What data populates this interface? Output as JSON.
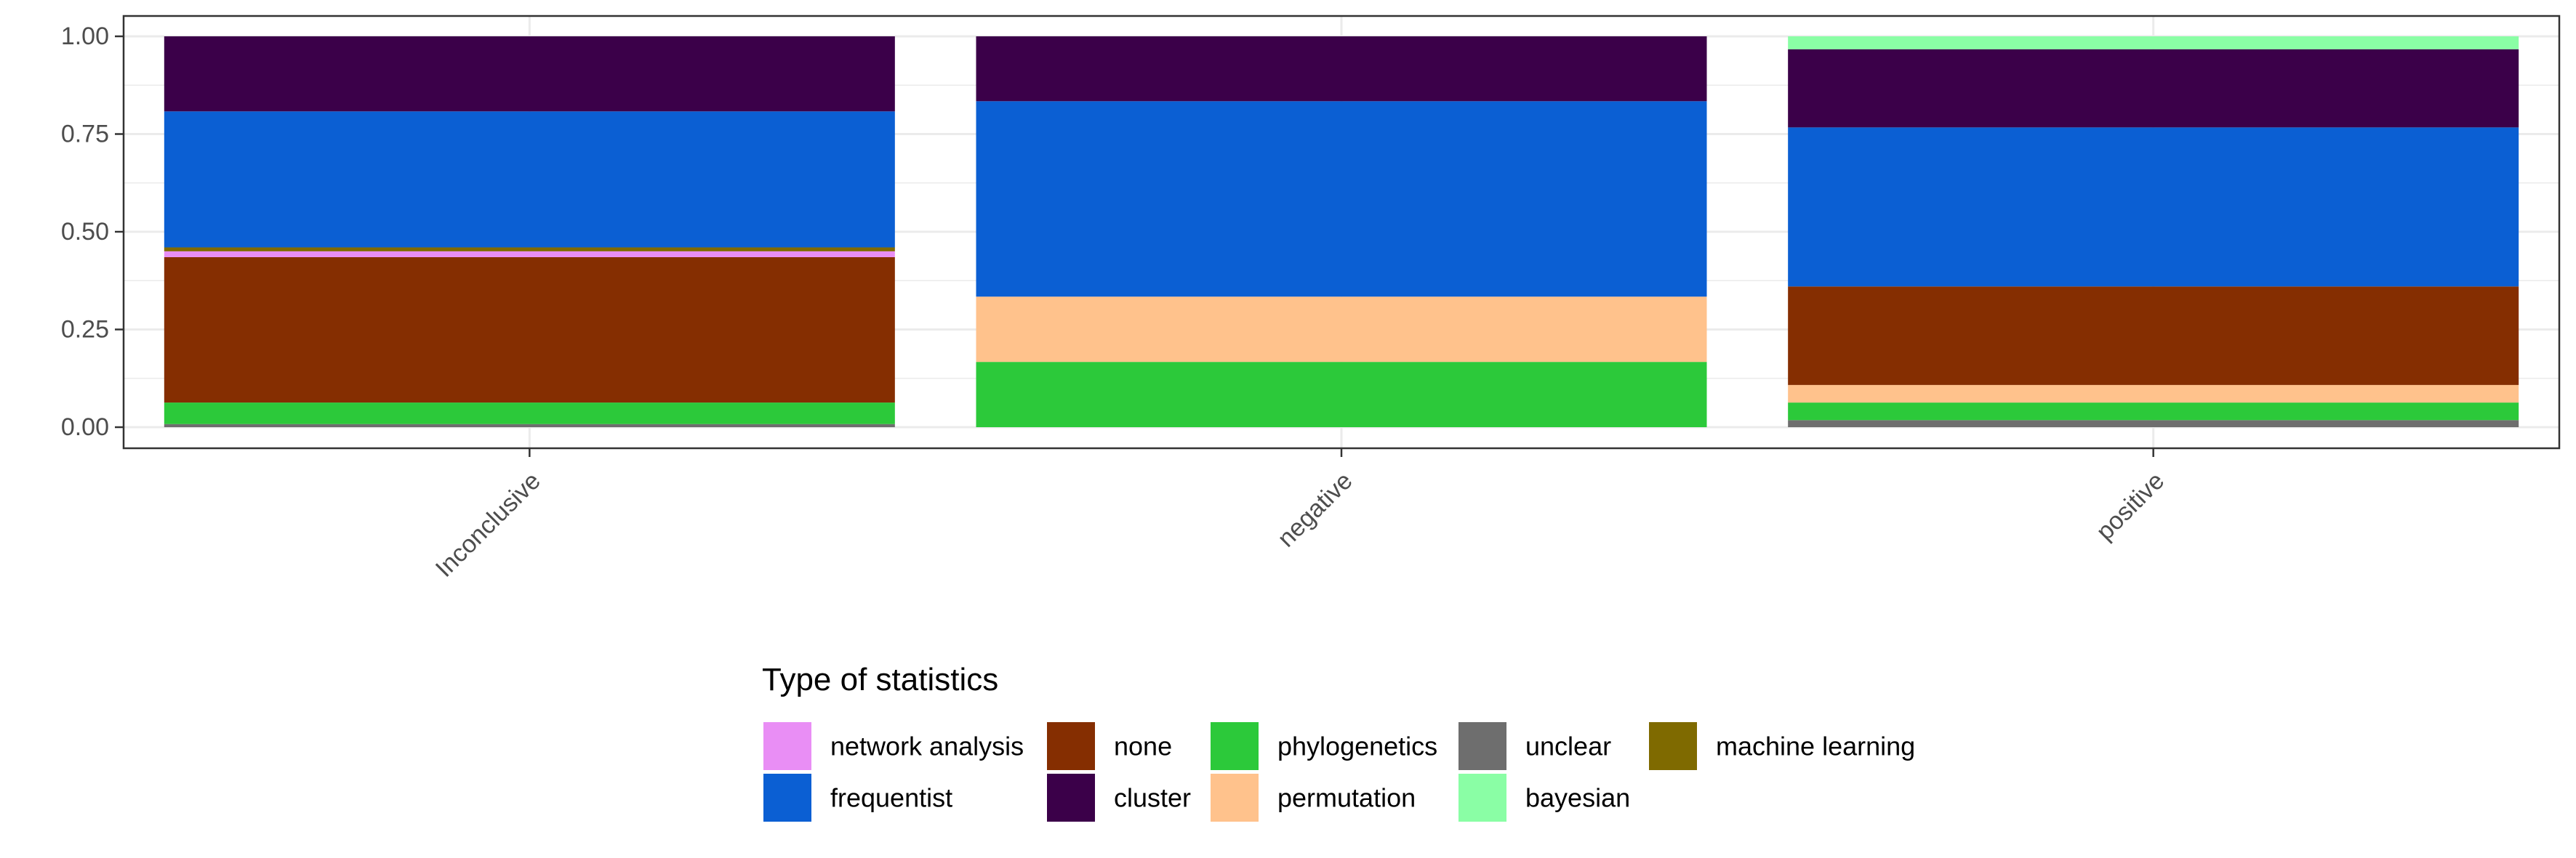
{
  "chart_data": {
    "type": "bar",
    "stacked": true,
    "normalized": true,
    "categories": [
      "Inconclusive",
      "negative",
      "positive"
    ],
    "ylim": [
      0,
      1
    ],
    "y_ticks": [
      0,
      0.25,
      0.5,
      0.75,
      1
    ],
    "y_tick_labels": [
      "0.00",
      "0.25",
      "0.50",
      "0.75",
      "1.00"
    ],
    "grid": true,
    "xlabel": "",
    "ylabel": "",
    "x_tick_rotation": 45,
    "legend": {
      "title": "Type of statistics",
      "position": "bottom",
      "rows": [
        [
          "network analysis",
          "none",
          "phylogenetics",
          "unclear",
          "machine learning"
        ],
        [
          "frequentist",
          "cluster",
          "permutation",
          "bayesian"
        ]
      ]
    },
    "series": [
      {
        "name": "unclear",
        "color": "#6E6E6E",
        "values": [
          0.008,
          0.0,
          0.018
        ]
      },
      {
        "name": "phylogenetics",
        "color": "#2CC93A",
        "values": [
          0.055,
          0.167,
          0.045
        ]
      },
      {
        "name": "permutation",
        "color": "#FFC28C",
        "values": [
          0.0,
          0.167,
          0.045
        ]
      },
      {
        "name": "none",
        "color": "#852E01",
        "values": [
          0.372,
          0.0,
          0.252
        ]
      },
      {
        "name": "network analysis",
        "color": "#E98EF5",
        "values": [
          0.015,
          0.0,
          0.0
        ]
      },
      {
        "name": "machine learning",
        "color": "#7F6A00",
        "values": [
          0.01,
          0.0,
          0.0
        ]
      },
      {
        "name": "frequentist",
        "color": "#0B5FD3",
        "values": [
          0.348,
          0.5,
          0.407
        ]
      },
      {
        "name": "cluster",
        "color": "#3B0049",
        "values": [
          0.192,
          0.166,
          0.2
        ]
      },
      {
        "name": "bayesian",
        "color": "#8AFEA5",
        "values": [
          0.0,
          0.0,
          0.033
        ]
      }
    ]
  }
}
